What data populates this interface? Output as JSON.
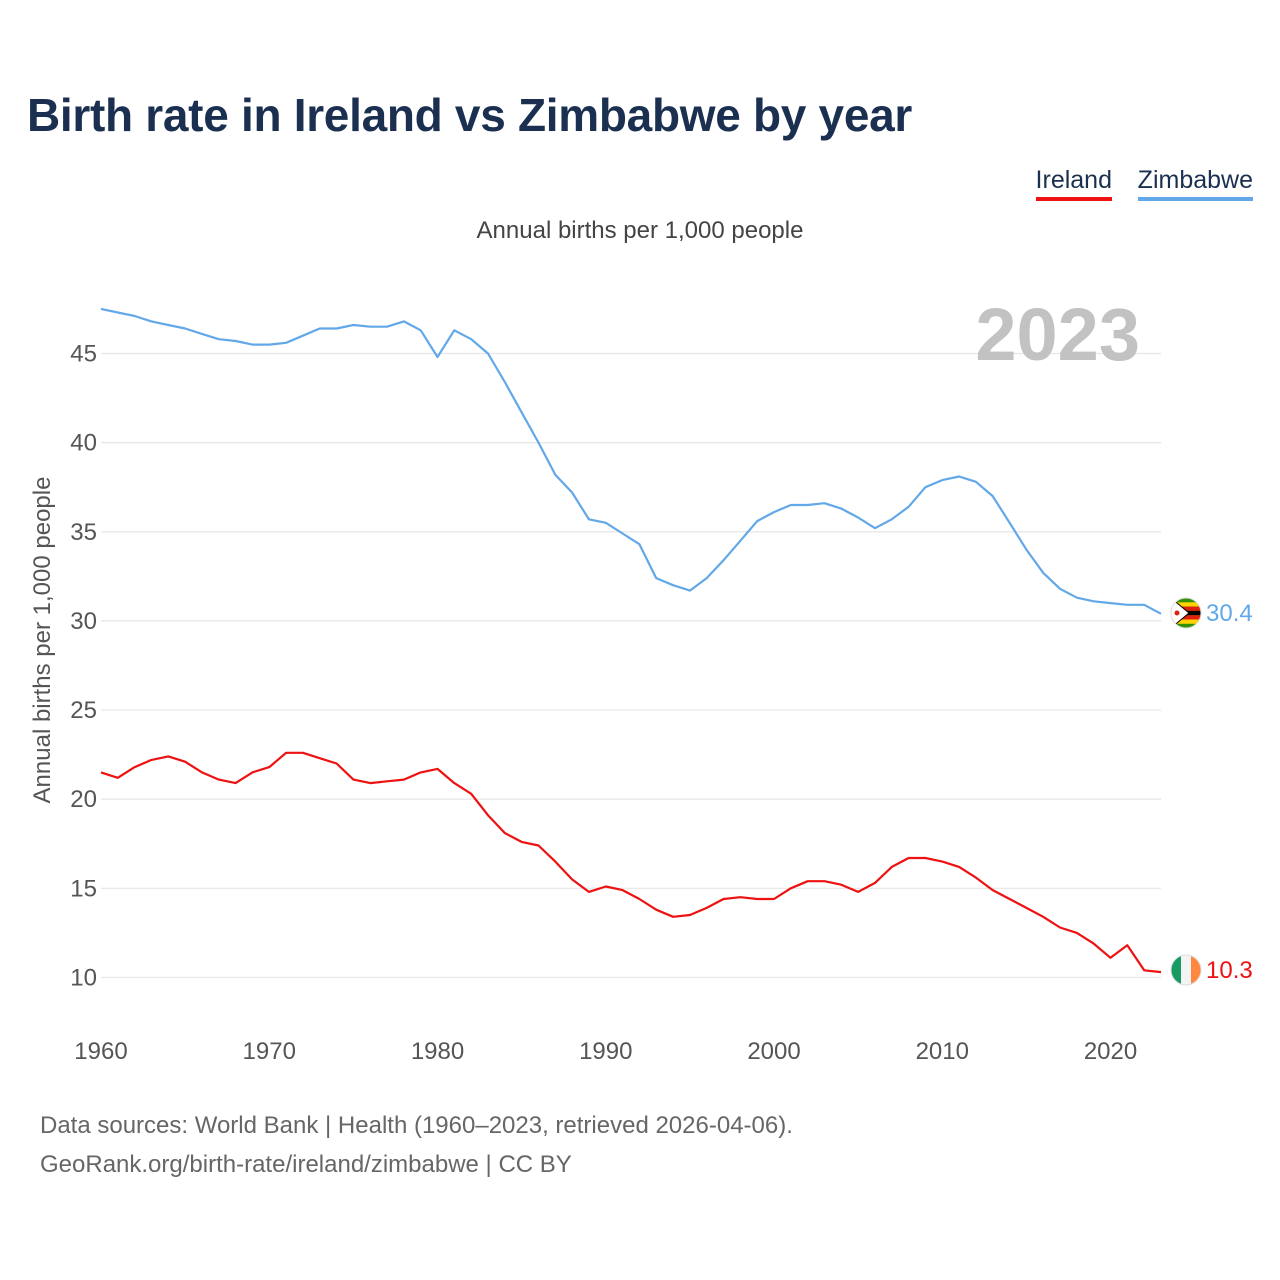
{
  "title": "Birth rate in Ireland vs Zimbabwe by year",
  "subtitle": "Annual births per 1,000 people",
  "legend": [
    {
      "label": "Ireland",
      "color": "#ee1111"
    },
    {
      "label": "Zimbabwe",
      "color": "#62a8e8"
    }
  ],
  "source": {
    "line1": "Data sources: World Bank | Health (1960–2023, retrieved 2026-04-06).",
    "line2": "GeoRank.org/birth-rate/ireland/zimbabwe | CC BY"
  },
  "chart_data": {
    "type": "line",
    "title": "Birth rate in Ireland vs Zimbabwe by year",
    "ylabel": "Annual births per 1,000 people",
    "xlabel": "",
    "year_label": "2023",
    "xlim": [
      1960,
      2023
    ],
    "ylim": [
      7.5,
      48
    ],
    "x_ticks": [
      1960,
      1970,
      1980,
      1990,
      2000,
      2010,
      2020
    ],
    "y_ticks": [
      10,
      15,
      20,
      25,
      30,
      35,
      40,
      45
    ],
    "grid": true,
    "x": [
      1960,
      1961,
      1962,
      1963,
      1964,
      1965,
      1966,
      1967,
      1968,
      1969,
      1970,
      1971,
      1972,
      1973,
      1974,
      1975,
      1976,
      1977,
      1978,
      1979,
      1980,
      1981,
      1982,
      1983,
      1984,
      1985,
      1986,
      1987,
      1988,
      1989,
      1990,
      1991,
      1992,
      1993,
      1994,
      1995,
      1996,
      1997,
      1998,
      1999,
      2000,
      2001,
      2002,
      2003,
      2004,
      2005,
      2006,
      2007,
      2008,
      2009,
      2010,
      2011,
      2012,
      2013,
      2014,
      2015,
      2016,
      2017,
      2018,
      2019,
      2020,
      2021,
      2022,
      2023
    ],
    "series": [
      {
        "name": "Zimbabwe",
        "color": "#62a8e8",
        "end_label": "30.4",
        "values": [
          47.5,
          47.3,
          47.1,
          46.8,
          46.6,
          46.4,
          46.1,
          45.8,
          45.7,
          45.5,
          45.5,
          45.6,
          46.0,
          46.4,
          46.4,
          46.6,
          46.5,
          46.5,
          46.8,
          46.3,
          44.8,
          46.3,
          45.8,
          45.0,
          43.4,
          41.7,
          40.0,
          38.2,
          37.2,
          35.7,
          35.5,
          34.9,
          34.3,
          32.4,
          32.0,
          31.7,
          32.4,
          33.4,
          34.5,
          35.6,
          36.1,
          36.5,
          36.5,
          36.6,
          36.3,
          35.8,
          35.2,
          35.7,
          36.4,
          37.5,
          37.9,
          38.1,
          37.8,
          37.0,
          35.5,
          34.0,
          32.7,
          31.8,
          31.3,
          31.1,
          31.0,
          30.9,
          30.9,
          30.4
        ]
      },
      {
        "name": "Ireland",
        "color": "#ee1111",
        "end_label": "10.3",
        "values": [
          21.5,
          21.2,
          21.8,
          22.2,
          22.4,
          22.1,
          21.5,
          21.1,
          20.9,
          21.5,
          21.8,
          22.6,
          22.6,
          22.3,
          22.0,
          21.1,
          20.9,
          21.0,
          21.1,
          21.5,
          21.7,
          20.9,
          20.3,
          19.1,
          18.1,
          17.6,
          17.4,
          16.5,
          15.5,
          14.8,
          15.1,
          14.9,
          14.4,
          13.8,
          13.4,
          13.5,
          13.9,
          14.4,
          14.5,
          14.4,
          14.4,
          15.0,
          15.4,
          15.4,
          15.2,
          14.8,
          15.3,
          16.2,
          16.7,
          16.7,
          16.5,
          16.2,
          15.6,
          14.9,
          14.4,
          13.9,
          13.4,
          12.8,
          12.5,
          11.9,
          11.1,
          11.8,
          10.4,
          10.3
        ]
      }
    ]
  }
}
